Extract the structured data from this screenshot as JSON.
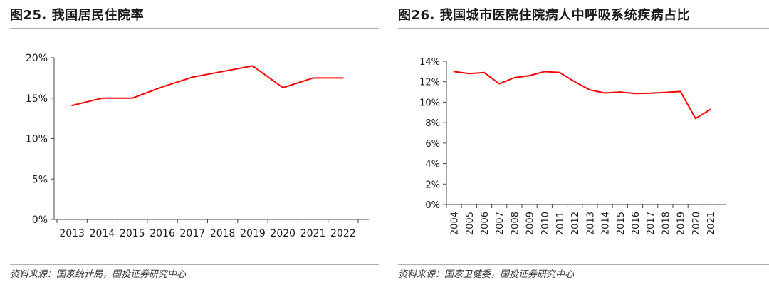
{
  "chart_data": [
    {
      "type": "line",
      "figure_label": "图25. 我国居民住院率",
      "title": "我国居民住院率",
      "source": "资料来源：国家统计局，国投证券研究中心",
      "categories": [
        "2013",
        "2014",
        "2015",
        "2016",
        "2017",
        "2018",
        "2019",
        "2020",
        "2021",
        "2022"
      ],
      "series": [
        {
          "name": "居民住院率",
          "color": "#ff0000",
          "values": [
            14.1,
            15.0,
            15.0,
            16.4,
            17.6,
            18.3,
            19.0,
            16.3,
            17.5,
            17.5
          ]
        }
      ],
      "xlabel": "",
      "ylabel": "",
      "ylim": [
        0,
        20
      ],
      "yticks": [
        0,
        5,
        10,
        15,
        20
      ],
      "ytick_labels": [
        "0%",
        "5%",
        "10%",
        "15%",
        "20%"
      ],
      "x_tick_rotation": "horizontal",
      "grid": false,
      "legend": "none"
    },
    {
      "type": "line",
      "figure_label": "图26. 我国城市医院住院病人中呼吸系统疾病占比",
      "title": "我国城市医院住院病人中呼吸系统疾病占比",
      "source": "资料来源：国家卫健委，国投证券研究中心",
      "categories": [
        "2004",
        "2005",
        "2006",
        "2007",
        "2008",
        "2009",
        "2010",
        "2011",
        "2012",
        "2013",
        "2014",
        "2015",
        "2016",
        "2017",
        "2018",
        "2019",
        "2020",
        "2021"
      ],
      "series": [
        {
          "name": "呼吸系统疾病占比",
          "color": "#ff0000",
          "values": [
            13.0,
            12.8,
            12.9,
            11.8,
            12.4,
            12.6,
            13.0,
            12.9,
            12.0,
            11.2,
            10.9,
            11.0,
            10.85,
            10.88,
            10.95,
            11.05,
            8.4,
            9.3
          ]
        }
      ],
      "xlabel": "",
      "ylabel": "",
      "ylim": [
        0,
        14
      ],
      "yticks": [
        0,
        2,
        4,
        6,
        8,
        10,
        12,
        14
      ],
      "ytick_labels": [
        "0%",
        "2%",
        "4%",
        "6%",
        "8%",
        "10%",
        "12%",
        "14%"
      ],
      "x_tick_rotation": "vertical",
      "grid": false,
      "legend": "none"
    }
  ]
}
